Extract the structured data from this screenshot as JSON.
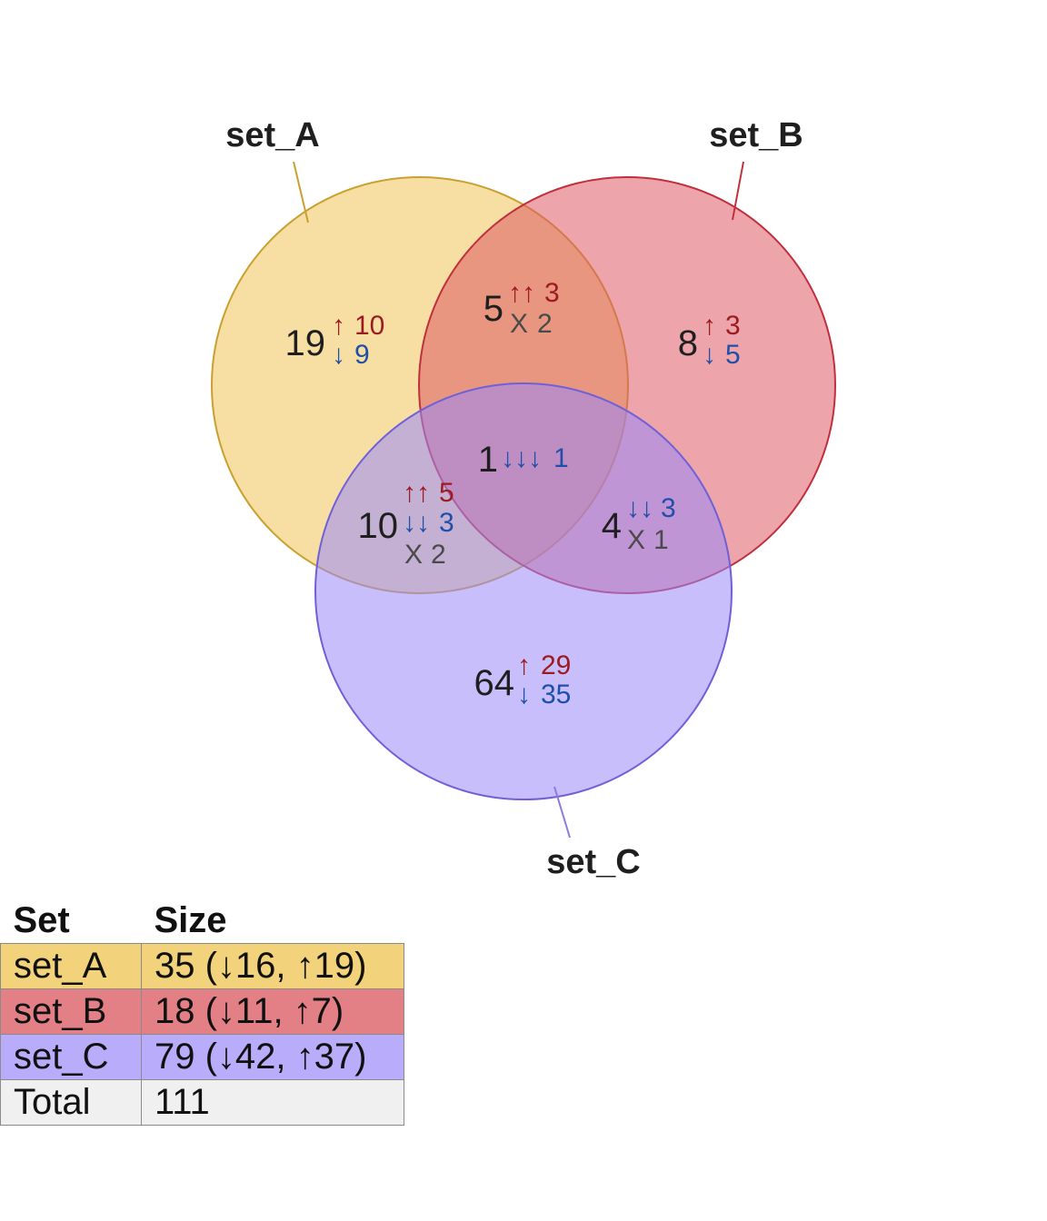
{
  "sets": [
    {
      "name": "set_A",
      "color": "#f0c45a"
    },
    {
      "name": "set_B",
      "color": "#de5a64"
    },
    {
      "name": "set_C",
      "color": "#9a88fa"
    }
  ],
  "regions": {
    "a_only": {
      "count": "19",
      "up_arrows": "↑",
      "up_count": "10",
      "down_arrows": "↓",
      "down_count": "9"
    },
    "b_only": {
      "count": "8",
      "up_arrows": "↑",
      "up_count": "3",
      "down_arrows": "↓",
      "down_count": "5"
    },
    "c_only": {
      "count": "64",
      "up_arrows": "↑",
      "up_count": "29",
      "down_arrows": "↓",
      "down_count": "35"
    },
    "ab": {
      "count": "5",
      "up_arrows": "↑↑",
      "up_count": "3",
      "mixed_label": "X",
      "mixed_count": "2"
    },
    "ac": {
      "count": "10",
      "up_arrows": "↑↑",
      "up_count": "5",
      "down_arrows": "↓↓",
      "down_count": "3",
      "mixed_label": "X",
      "mixed_count": "2"
    },
    "bc": {
      "count": "4",
      "down_arrows": "↓↓",
      "down_count": "3",
      "mixed_label": "X",
      "mixed_count": "1"
    },
    "abc": {
      "count": "1",
      "down_arrows": "↓↓↓",
      "down_count": "1"
    }
  },
  "table": {
    "headers": [
      "Set",
      "Size"
    ],
    "rows": [
      {
        "set": "set_A",
        "size": "35 (↓16, ↑19)",
        "color": "#f2d27a"
      },
      {
        "set": "set_B",
        "size": "18 (↓11, ↑7)",
        "color": "#e28086"
      },
      {
        "set": "set_C",
        "size": "79 (↓42, ↑37)",
        "color": "#b9acfa"
      },
      {
        "set": "Total",
        "size": "111",
        "color": "#f0f0f0"
      }
    ]
  }
}
